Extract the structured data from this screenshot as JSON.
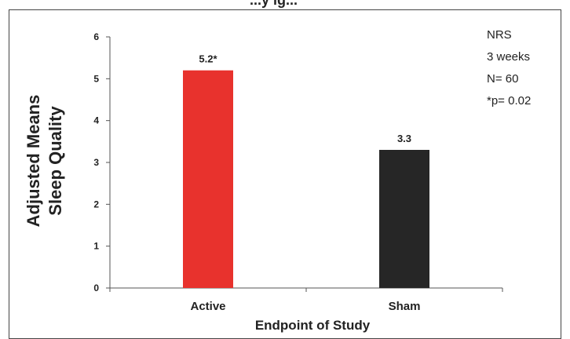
{
  "header_fragment": "...y ig...",
  "chart_data": {
    "type": "bar",
    "categories": [
      "Active",
      "Sham"
    ],
    "values": [
      5.2,
      3.3
    ],
    "data_labels": [
      "5.2*",
      "3.3"
    ],
    "colors": [
      "#e8322d",
      "#262626"
    ],
    "xlabel": "Endpoint of Study",
    "ylabel_lines": [
      "Adjusted Means",
      "Sleep Quality"
    ],
    "ylim": [
      0,
      6
    ],
    "yticks": [
      0,
      1,
      2,
      3,
      4,
      5,
      6
    ],
    "grid": false,
    "legend": "none"
  },
  "annotations": [
    "NRS",
    "3 weeks",
    "N= 60",
    "*p= 0.02"
  ]
}
